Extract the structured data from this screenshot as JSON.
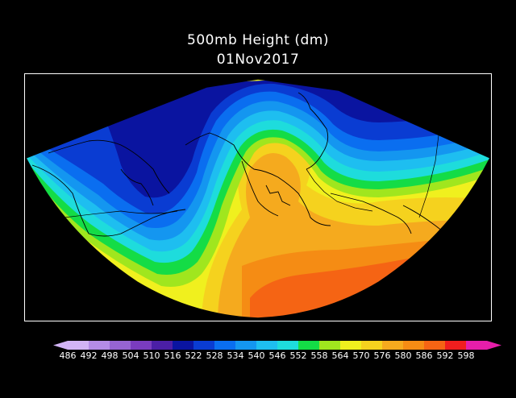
{
  "title": {
    "line1": "500mb Height (dm)",
    "line2": "01Nov2017"
  },
  "colorbar": {
    "labels": [
      "486",
      "492",
      "498",
      "504",
      "510",
      "516",
      "522",
      "528",
      "534",
      "540",
      "546",
      "552",
      "558",
      "564",
      "570",
      "576",
      "580",
      "586",
      "592",
      "598"
    ],
    "colors": [
      "#d2b4f5",
      "#b48ce6",
      "#9664d2",
      "#7a3cbf",
      "#4b1fa6",
      "#0a14a0",
      "#0a3cd2",
      "#0a6ef0",
      "#1496f0",
      "#1ebef0",
      "#1edcdc",
      "#14dc46",
      "#a0e61e",
      "#f0f01e",
      "#f5d21e",
      "#f5aa1e",
      "#f58c14",
      "#f56414",
      "#f01e1e",
      "#e61eaa"
    ]
  },
  "map": {
    "features": [
      "height contours",
      "coastlines",
      "borders"
    ],
    "region": "Alaska / North Pacific"
  }
}
